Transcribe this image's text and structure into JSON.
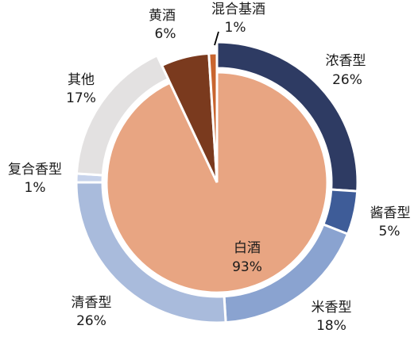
{
  "chart_data": {
    "type": "pie",
    "title": "",
    "center": {
      "label": "白酒",
      "percent": "93%"
    },
    "inner_ring": [
      {
        "name": "白酒",
        "value": 93,
        "percent": "93%",
        "color": "#E8A582"
      },
      {
        "name": "黄酒",
        "value": 6,
        "percent": "6%",
        "color": "#7A3A1E"
      },
      {
        "name": "混合基酒",
        "value": 1,
        "percent": "1%",
        "color": "#C9652F"
      }
    ],
    "outer_ring": [
      {
        "name": "浓香型",
        "value": 26,
        "percent": "26%",
        "color": "#2E3B63"
      },
      {
        "name": "酱香型",
        "value": 5,
        "percent": "5%",
        "color": "#3E5C98"
      },
      {
        "name": "米香型",
        "value": 18,
        "percent": "18%",
        "color": "#8AA3D0"
      },
      {
        "name": "清香型",
        "value": 26,
        "percent": "26%",
        "color": "#A9BBDC"
      },
      {
        "name": "复合香型",
        "value": 1,
        "percent": "1%",
        "color": "#C7D3EB"
      },
      {
        "name": "其他",
        "value": 17,
        "percent": "17%",
        "color": "#E3E1E1"
      },
      {
        "name": "黄酒",
        "value": 6,
        "percent": "6%",
        "color": "#7A3A1E"
      },
      {
        "name": "混合基酒",
        "value": 1,
        "percent": "1%",
        "color": "#C9652F"
      }
    ]
  }
}
